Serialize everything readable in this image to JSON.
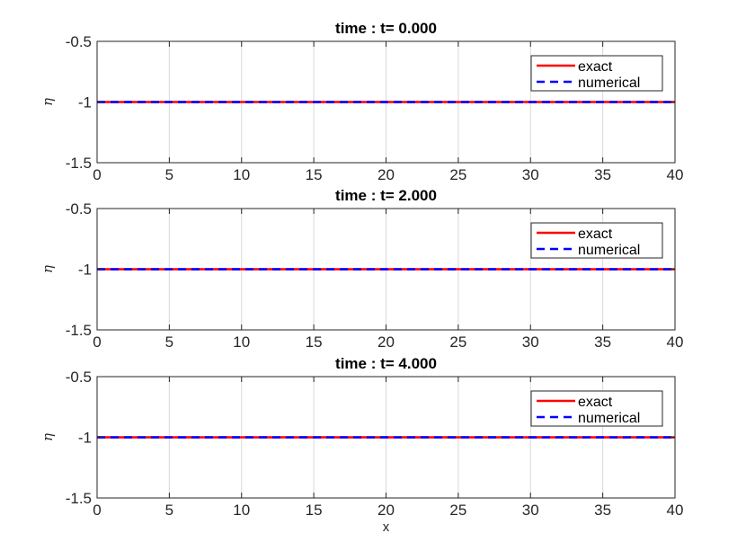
{
  "colors": {
    "exact": "#ff0000",
    "numerical": "#0000ff",
    "grid": "#d9d9d9",
    "axis": "#262626"
  },
  "chart_data": [
    {
      "type": "line",
      "title": "time : t= 0.000",
      "xlabel": "",
      "ylabel": "η",
      "xlim": [
        0,
        40
      ],
      "ylim": [
        -1.5,
        -0.5
      ],
      "xticks": [
        0,
        5,
        10,
        15,
        20,
        25,
        30,
        35,
        40
      ],
      "yticks": [
        -1.5,
        -1,
        -0.5
      ],
      "xtick_labels": [
        "0",
        "5",
        "10",
        "15",
        "20",
        "25",
        "30",
        "35",
        "40"
      ],
      "ytick_labels": [
        "-1.5",
        "-1",
        "-0.5"
      ],
      "grid": "x",
      "legend": "top-right",
      "series": [
        {
          "name": "exact",
          "style": "solid",
          "color": "#ff0000",
          "x": [
            0,
            40
          ],
          "y": [
            -1,
            -1
          ]
        },
        {
          "name": "numerical",
          "style": "dashed",
          "color": "#0000ff",
          "x": [
            0,
            40
          ],
          "y": [
            -1,
            -1
          ]
        }
      ]
    },
    {
      "type": "line",
      "title": "time : t= 2.000",
      "xlabel": "",
      "ylabel": "η",
      "xlim": [
        0,
        40
      ],
      "ylim": [
        -1.5,
        -0.5
      ],
      "xticks": [
        0,
        5,
        10,
        15,
        20,
        25,
        30,
        35,
        40
      ],
      "yticks": [
        -1.5,
        -1,
        -0.5
      ],
      "xtick_labels": [
        "0",
        "5",
        "10",
        "15",
        "20",
        "25",
        "30",
        "35",
        "40"
      ],
      "ytick_labels": [
        "-1.5",
        "-1",
        "-0.5"
      ],
      "grid": "x",
      "legend": "top-right",
      "series": [
        {
          "name": "exact",
          "style": "solid",
          "color": "#ff0000",
          "x": [
            0,
            40
          ],
          "y": [
            -1,
            -1
          ]
        },
        {
          "name": "numerical",
          "style": "dashed",
          "color": "#0000ff",
          "x": [
            0,
            40
          ],
          "y": [
            -1,
            -1
          ]
        }
      ]
    },
    {
      "type": "line",
      "title": "time : t= 4.000",
      "xlabel": "x",
      "ylabel": "η",
      "xlim": [
        0,
        40
      ],
      "ylim": [
        -1.5,
        -0.5
      ],
      "xticks": [
        0,
        5,
        10,
        15,
        20,
        25,
        30,
        35,
        40
      ],
      "yticks": [
        -1.5,
        -1,
        -0.5
      ],
      "xtick_labels": [
        "0",
        "5",
        "10",
        "15",
        "20",
        "25",
        "30",
        "35",
        "40"
      ],
      "ytick_labels": [
        "-1.5",
        "-1",
        "-0.5"
      ],
      "grid": "x",
      "legend": "top-right",
      "series": [
        {
          "name": "exact",
          "style": "solid",
          "color": "#ff0000",
          "x": [
            0,
            40
          ],
          "y": [
            -1,
            -1
          ]
        },
        {
          "name": "numerical",
          "style": "dashed",
          "color": "#0000ff",
          "x": [
            0,
            40
          ],
          "y": [
            -1,
            -1
          ]
        }
      ]
    }
  ]
}
